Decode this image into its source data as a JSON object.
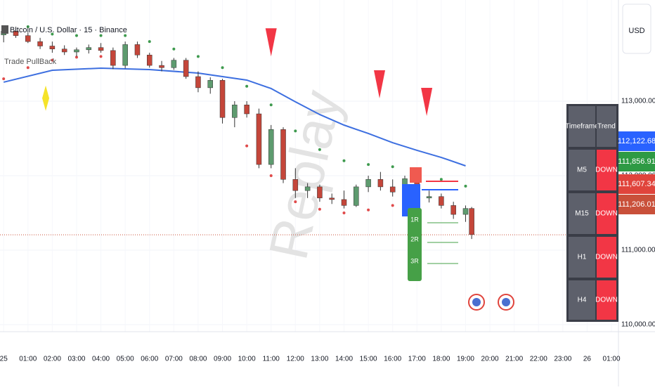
{
  "chart_data": {
    "type": "candlestick",
    "title": "Bitcoin / U.S. Dollar · 15 · Binance",
    "indicator": "Trade PullBack",
    "currency": "USD",
    "watermark": "Replay",
    "grid": true,
    "up_color": "#5e9b6f",
    "down_color": "#c4463a",
    "ylim": [
      109906,
      114358
    ],
    "yticks": [
      {
        "value": 110000,
        "label": "110,000.00"
      },
      {
        "value": 111000,
        "label": "111,000.00"
      },
      {
        "value": 112000,
        "label": "112,000.00"
      },
      {
        "value": 113000,
        "label": "113,000.00"
      }
    ],
    "xlim": [
      -0.15,
      25.23
    ],
    "xticks": [
      {
        "value": 0,
        "label": "25"
      },
      {
        "value": 1,
        "label": "01:00"
      },
      {
        "value": 2,
        "label": "02:00"
      },
      {
        "value": 3,
        "label": "03:00"
      },
      {
        "value": 4,
        "label": "04:00"
      },
      {
        "value": 5,
        "label": "05:00"
      },
      {
        "value": 6,
        "label": "06:00"
      },
      {
        "value": 7,
        "label": "07:00"
      },
      {
        "value": 8,
        "label": "08:00"
      },
      {
        "value": 9,
        "label": "09:00"
      },
      {
        "value": 10,
        "label": "10:00"
      },
      {
        "value": 11,
        "label": "11:00"
      },
      {
        "value": 12,
        "label": "12:00"
      },
      {
        "value": 13,
        "label": "13:00"
      },
      {
        "value": 14,
        "label": "14:00"
      },
      {
        "value": 15,
        "label": "15:00"
      },
      {
        "value": 16,
        "label": "16:00"
      },
      {
        "value": 17,
        "label": "17:00"
      },
      {
        "value": 18,
        "label": "18:00"
      },
      {
        "value": 19,
        "label": "19:00"
      },
      {
        "value": 20,
        "label": "20:00"
      },
      {
        "value": 21,
        "label": "21:00"
      },
      {
        "value": 22,
        "label": "22:00"
      },
      {
        "value": 23,
        "label": "23:00"
      },
      {
        "value": 24,
        "label": "26"
      },
      {
        "value": 25,
        "label": "01:00"
      }
    ],
    "candles": {
      "x": [
        0,
        0.5,
        1,
        1.5,
        2,
        2.5,
        3,
        3.5,
        4,
        4.5,
        5,
        5.5,
        6,
        6.5,
        7,
        7.5,
        8,
        8.5,
        9,
        9.5,
        10,
        10.5,
        11,
        11.5,
        12,
        12.5,
        13,
        13.5,
        14,
        14.5,
        15,
        15.5,
        16,
        16.5,
        17,
        17.5,
        18,
        18.5,
        19,
        19.25
      ],
      "open": [
        113890,
        113940,
        113880,
        113800,
        113740,
        113700,
        113660,
        113690,
        113720,
        113680,
        113480,
        113760,
        113620,
        113480,
        113450,
        113550,
        113330,
        113180,
        113280,
        112780,
        112950,
        112830,
        112150,
        112620,
        111950,
        111800,
        111850,
        111700,
        111680,
        111600,
        111850,
        111950,
        111850,
        111780,
        111960,
        111700,
        111720,
        111600,
        111480,
        111560
      ],
      "high": [
        113980,
        113990,
        113920,
        113850,
        113800,
        113750,
        113720,
        113760,
        113780,
        113720,
        113800,
        113800,
        113650,
        113540,
        113580,
        113580,
        113400,
        113320,
        113300,
        113000,
        113000,
        112900,
        112680,
        112650,
        112100,
        111900,
        111880,
        111760,
        111800,
        111880,
        112000,
        112050,
        111950,
        112000,
        112020,
        111800,
        111760,
        111650,
        111600,
        111580
      ],
      "low": [
        113790,
        113850,
        113780,
        113700,
        113650,
        113620,
        113600,
        113640,
        113650,
        113430,
        113440,
        113580,
        113450,
        113400,
        113420,
        113300,
        113120,
        113100,
        112700,
        112650,
        112780,
        112100,
        112100,
        111900,
        111700,
        111700,
        111650,
        111620,
        111560,
        111580,
        111780,
        111800,
        111720,
        111760,
        111540,
        111640,
        111560,
        111420,
        111380,
        111150
      ],
      "close": [
        113940,
        113880,
        113800,
        113740,
        113700,
        113660,
        113690,
        113720,
        113680,
        113480,
        113760,
        113620,
        113480,
        113450,
        113550,
        113330,
        113180,
        113280,
        112780,
        112950,
        112830,
        112150,
        112620,
        111950,
        111800,
        111850,
        111700,
        111680,
        111600,
        111850,
        111950,
        111850,
        111780,
        111960,
        111700,
        111720,
        111600,
        111480,
        111560,
        111210
      ]
    },
    "series": [
      {
        "name": "MA",
        "color": "#3d6fe0",
        "kind": "line",
        "x": [
          0,
          2,
          4,
          6,
          8,
          10,
          11,
          12,
          13,
          14,
          15,
          16,
          17,
          18,
          19
        ],
        "values": [
          113255,
          113415,
          113443,
          113424,
          113377,
          113283,
          113170,
          112991,
          112821,
          112679,
          112566,
          112443,
          112340,
          112245,
          112132
        ]
      },
      {
        "name": "PSAR Down",
        "color": "#3e9a4e",
        "kind": "dots",
        "x": [
          1,
          2,
          3,
          4,
          5,
          6,
          7,
          8,
          9,
          10,
          11,
          12,
          13,
          14,
          15,
          16,
          17,
          18,
          19
        ],
        "values": [
          114000,
          113900,
          113880,
          113880,
          113880,
          113800,
          113700,
          113600,
          113450,
          113200,
          112950,
          112600,
          112350,
          112200,
          112150,
          112120,
          112080,
          111950,
          111860
        ]
      },
      {
        "name": "PSAR Up",
        "color": "#e04a4a",
        "kind": "dots",
        "x": [
          0,
          1,
          2,
          3,
          4,
          10,
          11,
          12,
          13,
          14,
          15,
          16
        ],
        "values": [
          113300,
          113450,
          113550,
          113590,
          113600,
          112400,
          112000,
          111650,
          111550,
          111500,
          111540,
          111600
        ]
      }
    ],
    "signals": {
      "sell": {
        "color": "#f23645",
        "x": [
          11,
          15.46,
          17.4
        ],
        "values": [
          113790,
          113226,
          112990
        ]
      },
      "buy": {
        "color": "#f5e32a",
        "x": [
          1.73
        ],
        "values": [
          113040
        ]
      }
    },
    "rr_labels": [
      "1R",
      "2R",
      "3R"
    ],
    "price_labels": [
      {
        "value": 112122.68,
        "label": "112,122.68",
        "color": "#2962ff"
      },
      {
        "value": 111856.91,
        "label": "111,856.91",
        "color": "#2e9a44"
      },
      {
        "value": 111607.34,
        "label": "111,607.34",
        "color": "#e0443c"
      },
      {
        "value": 111206.01,
        "label": "111,206.01",
        "color": "#c9503a"
      }
    ],
    "trend_table": {
      "header": [
        "Timeframe",
        "Trend"
      ],
      "rows": [
        [
          "M5",
          "DOWN"
        ],
        [
          "M15",
          "DOWN"
        ],
        [
          "H1",
          "DOWN"
        ],
        [
          "H4",
          "DOWN"
        ]
      ]
    }
  }
}
